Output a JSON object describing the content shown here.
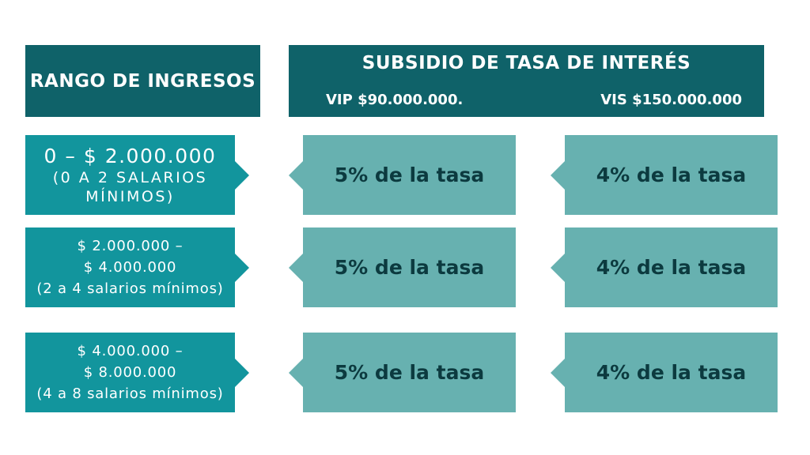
{
  "header": {
    "left_title": "RANGO DE INGRESOS",
    "right_title": "SUBSIDIO DE TASA DE INTERÉS",
    "vip_label": "VIP $90.000.000.",
    "vis_label": "VIS $150.000.000"
  },
  "rows": [
    {
      "range_lines": [
        "0 – $ 2.000.000",
        "(0 A 2 SALARIOS",
        "MÍNIMOS)"
      ],
      "vip_rate": "5% de la tasa",
      "vis_rate": "4% de la tasa"
    },
    {
      "range_lines": [
        "$ 2.000.000 –",
        "$ 4.000.000",
        "(2 a 4 salarios mínimos)"
      ],
      "vip_rate": "5% de la tasa",
      "vis_rate": "4% de la tasa"
    },
    {
      "range_lines": [
        "$ 4.000.000 –",
        "$ 8.000.000",
        "(4 a 8 salarios mínimos)"
      ],
      "vip_rate": "5% de la tasa",
      "vis_rate": "4% de la tasa"
    }
  ],
  "colors": {
    "header_bg": "#0f6269",
    "range_bg": "#12959d",
    "rate_bg": "#67b1b0",
    "rate_text": "#0c3a3f"
  }
}
